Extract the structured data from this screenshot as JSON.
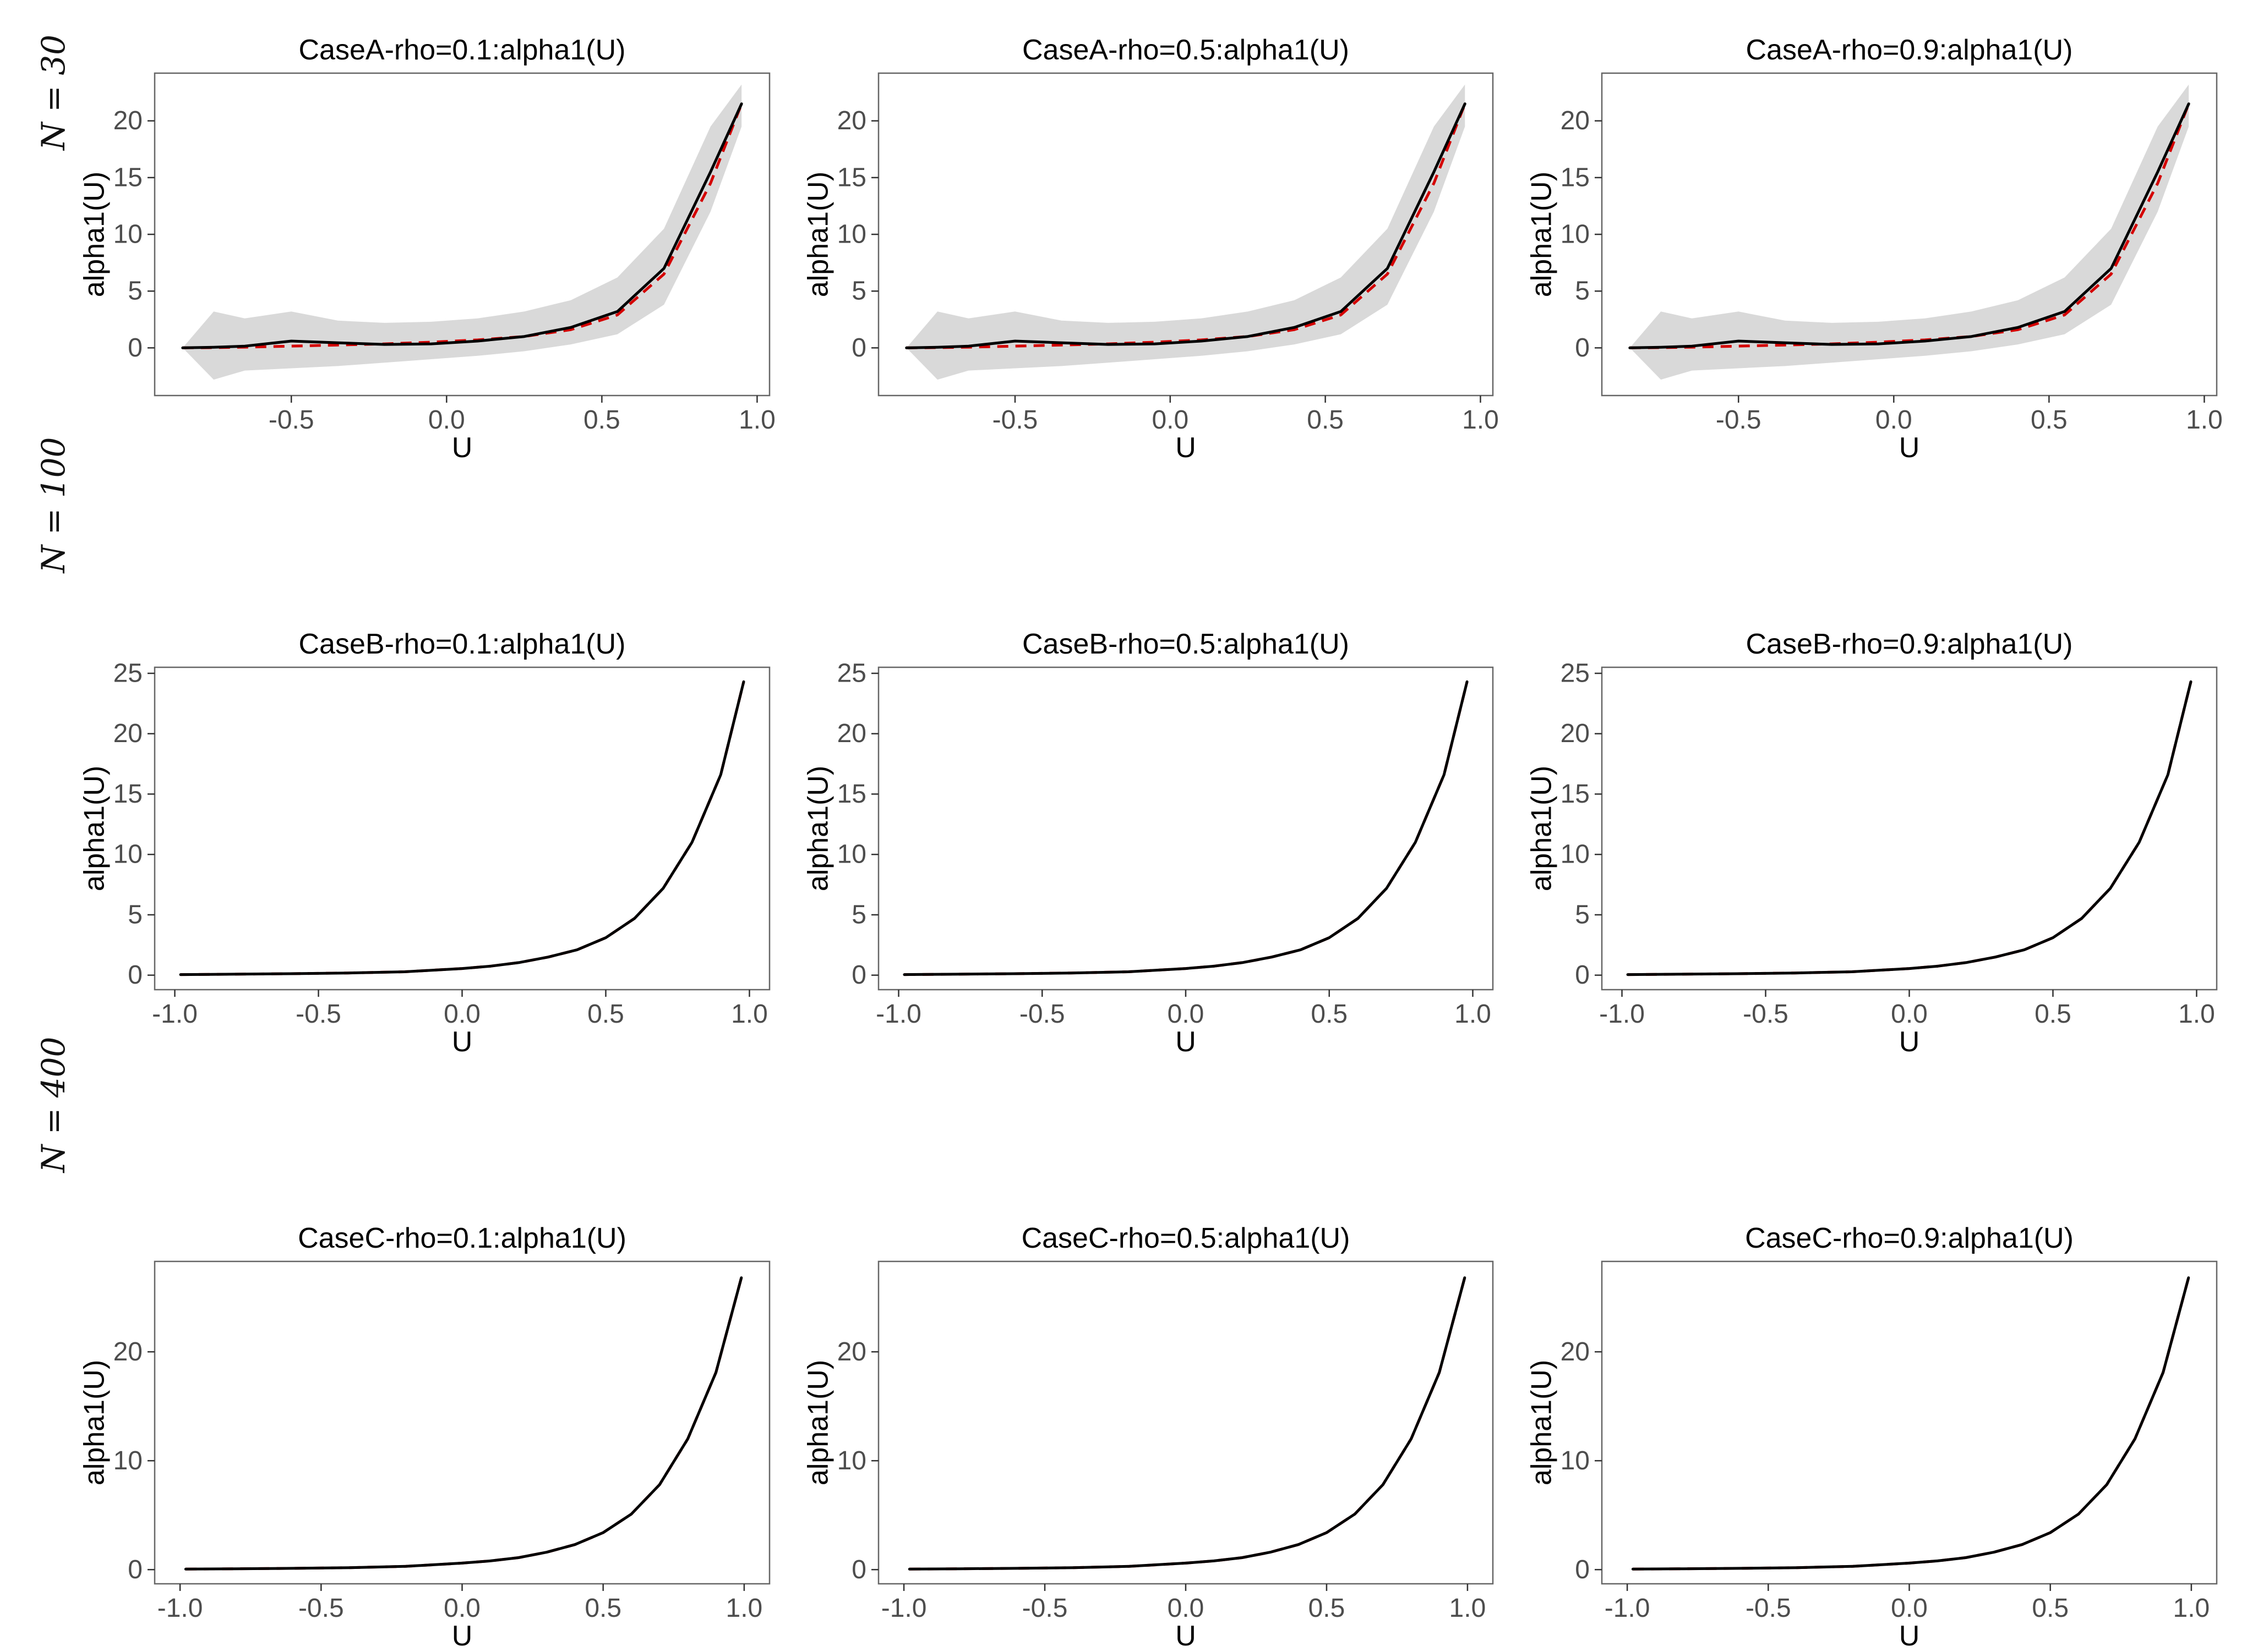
{
  "row_labels": [
    "N = 30",
    "N = 100",
    "N = 400"
  ],
  "chart_data": [
    {
      "type": "line",
      "title": "CaseA-rho=0.1:alpha1(U)",
      "xlabel": "U",
      "ylabel": "alpha1(U)",
      "xlim": [
        -0.94,
        1.04
      ],
      "ylim": [
        -4.2,
        24.2
      ],
      "xticks": [
        -0.5,
        0.0,
        0.5,
        1.0
      ],
      "xtick_labels": [
        "-0.5",
        "0.0",
        "0.5",
        "1.0"
      ],
      "yticks": [
        0,
        5,
        10,
        15,
        20
      ],
      "ytick_labels": [
        "0",
        "5",
        "10",
        "15",
        "20"
      ],
      "grid": false,
      "x": [
        -0.85,
        -0.75,
        -0.65,
        -0.5,
        -0.35,
        -0.2,
        -0.05,
        0.1,
        0.25,
        0.4,
        0.55,
        0.7,
        0.85,
        0.95
      ],
      "estimate": [
        0,
        0.05,
        0.15,
        0.6,
        0.45,
        0.3,
        0.35,
        0.6,
        1.0,
        1.8,
        3.2,
        7.0,
        15.5,
        21.5
      ],
      "truth": [
        0,
        0.02,
        0.06,
        0.15,
        0.25,
        0.35,
        0.5,
        0.7,
        1.0,
        1.6,
        2.9,
        6.5,
        14.5,
        21.5
      ],
      "band_lower": [
        0,
        -2.8,
        -2.0,
        -1.8,
        -1.6,
        -1.3,
        -1.0,
        -0.7,
        -0.3,
        0.3,
        1.2,
        3.8,
        12.0,
        19.5
      ],
      "band_upper": [
        0,
        3.2,
        2.6,
        3.2,
        2.4,
        2.2,
        2.3,
        2.6,
        3.2,
        4.2,
        6.2,
        10.5,
        19.5,
        23.2
      ],
      "series": [
        {
          "name": "estimate",
          "color": "#000000",
          "style": "solid"
        },
        {
          "name": "true",
          "color": "#d40000",
          "style": "dashed"
        },
        {
          "name": "confidence band",
          "color": "#d9d9d9",
          "style": "fill"
        }
      ]
    },
    {
      "type": "line",
      "title": "CaseA-rho=0.5:alpha1(U)",
      "xlabel": "U",
      "ylabel": "alpha1(U)",
      "xlim": [
        -0.94,
        1.04
      ],
      "ylim": [
        -4.2,
        24.2
      ],
      "xticks": [
        -0.5,
        0.0,
        0.5,
        1.0
      ],
      "xtick_labels": [
        "-0.5",
        "0.0",
        "0.5",
        "1.0"
      ],
      "yticks": [
        0,
        5,
        10,
        15,
        20
      ],
      "ytick_labels": [
        "0",
        "5",
        "10",
        "15",
        "20"
      ],
      "grid": false,
      "x": [
        -0.85,
        -0.75,
        -0.65,
        -0.5,
        -0.35,
        -0.2,
        -0.05,
        0.1,
        0.25,
        0.4,
        0.55,
        0.7,
        0.85,
        0.95
      ],
      "estimate": [
        0,
        0.05,
        0.15,
        0.6,
        0.45,
        0.3,
        0.35,
        0.6,
        1.0,
        1.8,
        3.2,
        7.0,
        15.5,
        21.5
      ],
      "truth": [
        0,
        0.02,
        0.06,
        0.15,
        0.25,
        0.35,
        0.5,
        0.7,
        1.0,
        1.6,
        2.9,
        6.5,
        14.5,
        21.5
      ],
      "band_lower": [
        0,
        -2.8,
        -2.0,
        -1.8,
        -1.6,
        -1.3,
        -1.0,
        -0.7,
        -0.3,
        0.3,
        1.2,
        3.8,
        12.0,
        19.5
      ],
      "band_upper": [
        0,
        3.2,
        2.6,
        3.2,
        2.4,
        2.2,
        2.3,
        2.6,
        3.2,
        4.2,
        6.2,
        10.5,
        19.5,
        23.2
      ],
      "series": [
        {
          "name": "estimate",
          "color": "#000000",
          "style": "solid"
        },
        {
          "name": "true",
          "color": "#d40000",
          "style": "dashed"
        },
        {
          "name": "confidence band",
          "color": "#d9d9d9",
          "style": "fill"
        }
      ]
    },
    {
      "type": "line",
      "title": "CaseA-rho=0.9:alpha1(U)",
      "xlabel": "U",
      "ylabel": "alpha1(U)",
      "xlim": [
        -0.94,
        1.04
      ],
      "ylim": [
        -4.2,
        24.2
      ],
      "xticks": [
        -0.5,
        0.0,
        0.5,
        1.0
      ],
      "xtick_labels": [
        "-0.5",
        "0.0",
        "0.5",
        "1.0"
      ],
      "yticks": [
        0,
        5,
        10,
        15,
        20
      ],
      "ytick_labels": [
        "0",
        "5",
        "10",
        "15",
        "20"
      ],
      "grid": false,
      "x": [
        -0.85,
        -0.75,
        -0.65,
        -0.5,
        -0.35,
        -0.2,
        -0.05,
        0.1,
        0.25,
        0.4,
        0.55,
        0.7,
        0.85,
        0.95
      ],
      "estimate": [
        0,
        0.05,
        0.15,
        0.6,
        0.45,
        0.3,
        0.35,
        0.6,
        1.0,
        1.8,
        3.2,
        7.0,
        15.5,
        21.5
      ],
      "truth": [
        0,
        0.02,
        0.06,
        0.15,
        0.25,
        0.35,
        0.5,
        0.7,
        1.0,
        1.6,
        2.9,
        6.5,
        14.5,
        21.5
      ],
      "band_lower": [
        0,
        -2.8,
        -2.0,
        -1.8,
        -1.6,
        -1.3,
        -1.0,
        -0.7,
        -0.3,
        0.3,
        1.2,
        3.8,
        12.0,
        19.5
      ],
      "band_upper": [
        0,
        3.2,
        2.6,
        3.2,
        2.4,
        2.2,
        2.3,
        2.6,
        3.2,
        4.2,
        6.2,
        10.5,
        19.5,
        23.2
      ],
      "series": [
        {
          "name": "estimate",
          "color": "#000000",
          "style": "solid"
        },
        {
          "name": "true",
          "color": "#d40000",
          "style": "dashed"
        },
        {
          "name": "confidence band",
          "color": "#d9d9d9",
          "style": "fill"
        }
      ]
    },
    {
      "type": "line",
      "title": "CaseB-rho=0.1:alpha1(U)",
      "xlabel": "U",
      "ylabel": "alpha1(U)",
      "xlim": [
        -1.07,
        1.07
      ],
      "ylim": [
        -1.2,
        25.5
      ],
      "xticks": [
        -1.0,
        -0.5,
        0.0,
        0.5,
        1.0
      ],
      "xtick_labels": [
        "-1.0",
        "-0.5",
        "0.0",
        "0.5",
        "1.0"
      ],
      "yticks": [
        0,
        5,
        10,
        15,
        20,
        25
      ],
      "ytick_labels": [
        "0",
        "5",
        "10",
        "15",
        "20",
        "25"
      ],
      "grid": false,
      "x": [
        -0.98,
        -0.8,
        -0.6,
        -0.4,
        -0.2,
        0.0,
        0.1,
        0.2,
        0.3,
        0.4,
        0.5,
        0.6,
        0.7,
        0.8,
        0.9,
        0.98
      ],
      "estimate": [
        0.05,
        0.08,
        0.12,
        0.18,
        0.28,
        0.55,
        0.75,
        1.05,
        1.5,
        2.1,
        3.1,
        4.7,
        7.2,
        11.0,
        16.6,
        24.3
      ],
      "truth": [
        0.05,
        0.08,
        0.12,
        0.18,
        0.28,
        0.55,
        0.75,
        1.05,
        1.5,
        2.1,
        3.1,
        4.7,
        7.2,
        11.0,
        16.6,
        24.3
      ],
      "series": [
        {
          "name": "estimate",
          "color": "#000000",
          "style": "solid"
        },
        {
          "name": "true",
          "color": "#d40000",
          "style": "dashed"
        }
      ]
    },
    {
      "type": "line",
      "title": "CaseB-rho=0.5:alpha1(U)",
      "xlabel": "U",
      "ylabel": "alpha1(U)",
      "xlim": [
        -1.07,
        1.07
      ],
      "ylim": [
        -1.2,
        25.5
      ],
      "xticks": [
        -1.0,
        -0.5,
        0.0,
        0.5,
        1.0
      ],
      "xtick_labels": [
        "-1.0",
        "-0.5",
        "0.0",
        "0.5",
        "1.0"
      ],
      "yticks": [
        0,
        5,
        10,
        15,
        20,
        25
      ],
      "ytick_labels": [
        "0",
        "5",
        "10",
        "15",
        "20",
        "25"
      ],
      "grid": false,
      "x": [
        -0.98,
        -0.8,
        -0.6,
        -0.4,
        -0.2,
        0.0,
        0.1,
        0.2,
        0.3,
        0.4,
        0.5,
        0.6,
        0.7,
        0.8,
        0.9,
        0.98
      ],
      "estimate": [
        0.05,
        0.08,
        0.12,
        0.18,
        0.28,
        0.55,
        0.75,
        1.05,
        1.5,
        2.1,
        3.1,
        4.7,
        7.2,
        11.0,
        16.6,
        24.3
      ],
      "truth": [
        0.05,
        0.08,
        0.12,
        0.18,
        0.28,
        0.55,
        0.75,
        1.05,
        1.5,
        2.1,
        3.1,
        4.7,
        7.2,
        11.0,
        16.6,
        24.3
      ],
      "series": [
        {
          "name": "estimate",
          "color": "#000000",
          "style": "solid"
        },
        {
          "name": "true",
          "color": "#d40000",
          "style": "dashed"
        }
      ]
    },
    {
      "type": "line",
      "title": "CaseB-rho=0.9:alpha1(U)",
      "xlabel": "U",
      "ylabel": "alpha1(U)",
      "xlim": [
        -1.07,
        1.07
      ],
      "ylim": [
        -1.2,
        25.5
      ],
      "xticks": [
        -1.0,
        -0.5,
        0.0,
        0.5,
        1.0
      ],
      "xtick_labels": [
        "-1.0",
        "-0.5",
        "0.0",
        "0.5",
        "1.0"
      ],
      "yticks": [
        0,
        5,
        10,
        15,
        20,
        25
      ],
      "ytick_labels": [
        "0",
        "5",
        "10",
        "15",
        "20",
        "25"
      ],
      "grid": false,
      "x": [
        -0.98,
        -0.8,
        -0.6,
        -0.4,
        -0.2,
        0.0,
        0.1,
        0.2,
        0.3,
        0.4,
        0.5,
        0.6,
        0.7,
        0.8,
        0.9,
        0.98
      ],
      "estimate": [
        0.05,
        0.08,
        0.12,
        0.18,
        0.28,
        0.55,
        0.75,
        1.05,
        1.5,
        2.1,
        3.1,
        4.7,
        7.2,
        11.0,
        16.6,
        24.3
      ],
      "truth": [
        0.05,
        0.08,
        0.12,
        0.18,
        0.28,
        0.55,
        0.75,
        1.05,
        1.5,
        2.1,
        3.1,
        4.7,
        7.2,
        11.0,
        16.6,
        24.3
      ],
      "series": [
        {
          "name": "estimate",
          "color": "#000000",
          "style": "solid"
        },
        {
          "name": "true",
          "color": "#d40000",
          "style": "dashed"
        }
      ]
    },
    {
      "type": "line",
      "title": "CaseC-rho=0.1:alpha1(U)",
      "xlabel": "U",
      "ylabel": "alpha1(U)",
      "xlim": [
        -1.09,
        1.09
      ],
      "ylim": [
        -1.3,
        28.3
      ],
      "xticks": [
        -1.0,
        -0.5,
        0.0,
        0.5,
        1.0
      ],
      "xtick_labels": [
        "-1.0",
        "-0.5",
        "0.0",
        "0.5",
        "1.0"
      ],
      "yticks": [
        0,
        10,
        20
      ],
      "ytick_labels": [
        "0",
        "10",
        "20"
      ],
      "grid": false,
      "x": [
        -0.98,
        -0.8,
        -0.6,
        -0.4,
        -0.2,
        0.0,
        0.1,
        0.2,
        0.3,
        0.4,
        0.5,
        0.6,
        0.7,
        0.8,
        0.9,
        0.99
      ],
      "estimate": [
        0.05,
        0.08,
        0.12,
        0.18,
        0.3,
        0.6,
        0.8,
        1.1,
        1.6,
        2.3,
        3.4,
        5.1,
        7.8,
        12.0,
        18.1,
        26.8
      ],
      "truth": [
        0.05,
        0.08,
        0.12,
        0.18,
        0.3,
        0.6,
        0.8,
        1.1,
        1.6,
        2.3,
        3.4,
        5.1,
        7.8,
        12.0,
        18.1,
        26.8
      ],
      "series": [
        {
          "name": "estimate",
          "color": "#000000",
          "style": "solid"
        },
        {
          "name": "true",
          "color": "#d40000",
          "style": "dashed"
        }
      ]
    },
    {
      "type": "line",
      "title": "CaseC-rho=0.5:alpha1(U)",
      "xlabel": "U",
      "ylabel": "alpha1(U)",
      "xlim": [
        -1.09,
        1.09
      ],
      "ylim": [
        -1.3,
        28.3
      ],
      "xticks": [
        -1.0,
        -0.5,
        0.0,
        0.5,
        1.0
      ],
      "xtick_labels": [
        "-1.0",
        "-0.5",
        "0.0",
        "0.5",
        "1.0"
      ],
      "yticks": [
        0,
        10,
        20
      ],
      "ytick_labels": [
        "0",
        "10",
        "20"
      ],
      "grid": false,
      "x": [
        -0.98,
        -0.8,
        -0.6,
        -0.4,
        -0.2,
        0.0,
        0.1,
        0.2,
        0.3,
        0.4,
        0.5,
        0.6,
        0.7,
        0.8,
        0.9,
        0.99
      ],
      "estimate": [
        0.05,
        0.08,
        0.12,
        0.18,
        0.3,
        0.6,
        0.8,
        1.1,
        1.6,
        2.3,
        3.4,
        5.1,
        7.8,
        12.0,
        18.1,
        26.8
      ],
      "truth": [
        0.05,
        0.08,
        0.12,
        0.18,
        0.3,
        0.6,
        0.8,
        1.1,
        1.6,
        2.3,
        3.4,
        5.1,
        7.8,
        12.0,
        18.1,
        26.8
      ],
      "series": [
        {
          "name": "estimate",
          "color": "#000000",
          "style": "solid"
        },
        {
          "name": "true",
          "color": "#d40000",
          "style": "dashed"
        }
      ]
    },
    {
      "type": "line",
      "title": "CaseC-rho=0.9:alpha1(U)",
      "xlabel": "U",
      "ylabel": "alpha1(U)",
      "xlim": [
        -1.09,
        1.09
      ],
      "ylim": [
        -1.3,
        28.3
      ],
      "xticks": [
        -1.0,
        -0.5,
        0.0,
        0.5,
        1.0
      ],
      "xtick_labels": [
        "-1.0",
        "-0.5",
        "0.0",
        "0.5",
        "1.0"
      ],
      "yticks": [
        0,
        10,
        20
      ],
      "ytick_labels": [
        "0",
        "10",
        "20"
      ],
      "grid": false,
      "x": [
        -0.98,
        -0.8,
        -0.6,
        -0.4,
        -0.2,
        0.0,
        0.1,
        0.2,
        0.3,
        0.4,
        0.5,
        0.6,
        0.7,
        0.8,
        0.9,
        0.99
      ],
      "estimate": [
        0.05,
        0.08,
        0.12,
        0.18,
        0.3,
        0.6,
        0.8,
        1.1,
        1.6,
        2.3,
        3.4,
        5.1,
        7.8,
        12.0,
        18.1,
        26.8
      ],
      "truth": [
        0.05,
        0.08,
        0.12,
        0.18,
        0.3,
        0.6,
        0.8,
        1.1,
        1.6,
        2.3,
        3.4,
        5.1,
        7.8,
        12.0,
        18.1,
        26.8
      ],
      "series": [
        {
          "name": "estimate",
          "color": "#000000",
          "style": "solid"
        },
        {
          "name": "true",
          "color": "#d40000",
          "style": "dashed"
        }
      ]
    }
  ]
}
